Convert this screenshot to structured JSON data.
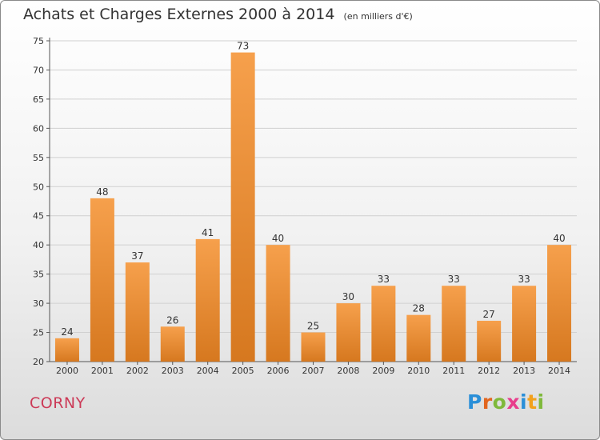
{
  "header": {
    "title": "Achats et Charges Externes 2000 à 2014",
    "unit": "(en milliers d'€)"
  },
  "footer": {
    "commune": "CORNY",
    "brand": "Proxiti",
    "brand_colors": [
      "#2a8fd8",
      "#e2661f",
      "#7fb93b",
      "#e83e8c",
      "#2a8fd8",
      "#f2a11d",
      "#7fb93b"
    ]
  },
  "colors": {
    "bar_light": "#f6a04c",
    "bar_dark": "#d6781f",
    "commune_text": "#cc3a57",
    "grid": "#d0d0d0"
  },
  "chart_data": {
    "type": "bar",
    "title": "Achats et Charges Externes 2000 à 2014",
    "subtitle": "(en milliers d'€)",
    "categories": [
      "2000",
      "2001",
      "2002",
      "2003",
      "2004",
      "2005",
      "2006",
      "2007",
      "2008",
      "2009",
      "2010",
      "2011",
      "2012",
      "2013",
      "2014"
    ],
    "values": [
      24,
      48,
      37,
      26,
      41,
      73,
      40,
      25,
      30,
      33,
      28,
      33,
      27,
      33,
      40
    ],
    "ylim": [
      20,
      75
    ],
    "yticks": [
      20,
      25,
      30,
      35,
      40,
      45,
      50,
      55,
      60,
      65,
      70,
      75
    ],
    "grid": true,
    "data_labels": true
  }
}
